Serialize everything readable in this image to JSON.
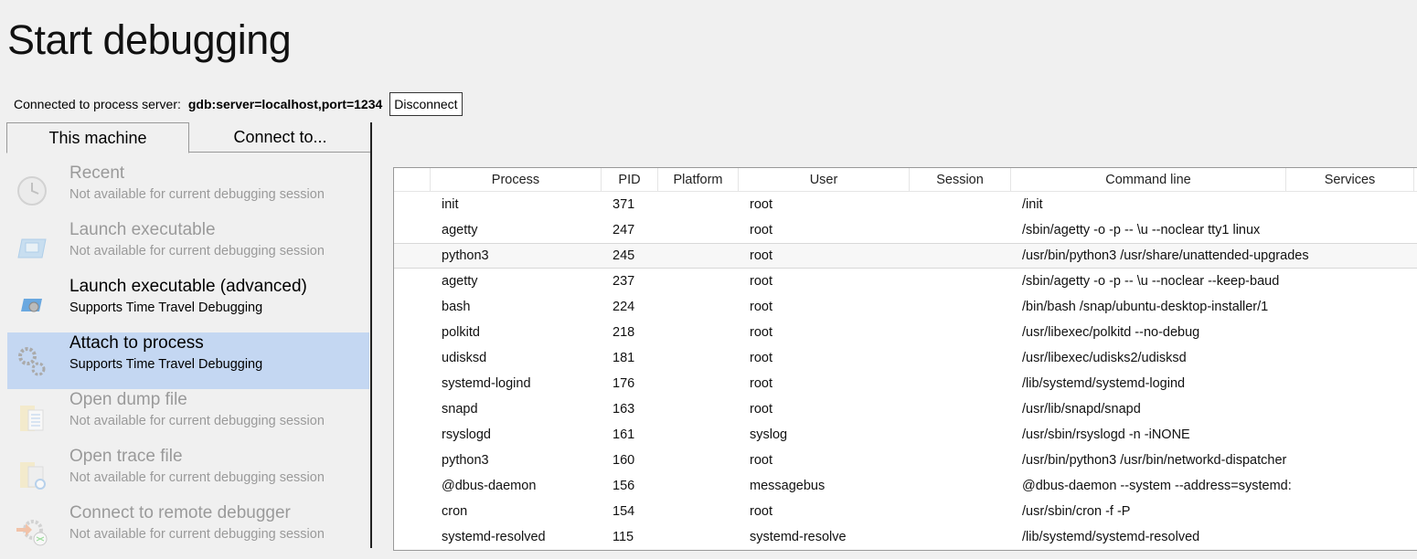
{
  "title": "Start debugging",
  "connection": {
    "label": "Connected to process server:",
    "server": "gdb:server=localhost,port=1234",
    "disconnect_label": "Disconnect"
  },
  "tabs": [
    {
      "label": "This machine",
      "active": true
    },
    {
      "label": "Connect to..."
    }
  ],
  "items": [
    {
      "title": "Recent",
      "subtitle": "Not available for current debugging session",
      "icon": "clock-icon",
      "disabled": true
    },
    {
      "title": "Launch executable",
      "subtitle": "Not available for current debugging session",
      "icon": "window-icon",
      "disabled": true
    },
    {
      "title": "Launch executable (advanced)",
      "subtitle": "Supports Time Travel Debugging",
      "icon": "window-gear-icon",
      "disabled": false
    },
    {
      "title": "Attach to process",
      "subtitle": "Supports Time Travel Debugging",
      "icon": "gears-icon",
      "disabled": false,
      "selected": true
    },
    {
      "title": "Open dump file",
      "subtitle": "Not available for current debugging session",
      "icon": "dump-file-icon",
      "disabled": true
    },
    {
      "title": "Open trace file",
      "subtitle": "Not available for current debugging session",
      "icon": "trace-file-icon",
      "disabled": true
    },
    {
      "title": "Connect to remote debugger",
      "subtitle": "Not available for current debugging session",
      "icon": "remote-connect-icon",
      "disabled": true
    }
  ],
  "table": {
    "columns": [
      "",
      "Process",
      "PID",
      "Platform",
      "User",
      "Session",
      "Command line",
      "Services"
    ],
    "rows": [
      [
        "init",
        "371",
        "",
        "root",
        "",
        "/init",
        ""
      ],
      [
        "agetty",
        "247",
        "",
        "root",
        "",
        "/sbin/agetty -o -p -- \\u --noclear tty1 linux",
        ""
      ],
      [
        "python3",
        "245",
        "",
        "root",
        "",
        "/usr/bin/python3 /usr/share/unattended-upgrades",
        ""
      ],
      [
        "agetty",
        "237",
        "",
        "root",
        "",
        "/sbin/agetty -o -p -- \\u --noclear --keep-baud",
        ""
      ],
      [
        "bash",
        "224",
        "",
        "root",
        "",
        "/bin/bash /snap/ubuntu-desktop-installer/1",
        ""
      ],
      [
        "polkitd",
        "218",
        "",
        "root",
        "",
        "/usr/libexec/polkitd --no-debug",
        ""
      ],
      [
        "udisksd",
        "181",
        "",
        "root",
        "",
        "/usr/libexec/udisks2/udisksd",
        ""
      ],
      [
        "systemd-logind",
        "176",
        "",
        "root",
        "",
        "/lib/systemd/systemd-logind",
        ""
      ],
      [
        "snapd",
        "163",
        "",
        "root",
        "",
        "/usr/lib/snapd/snapd",
        ""
      ],
      [
        "rsyslogd",
        "161",
        "",
        "syslog",
        "",
        "/usr/sbin/rsyslogd -n -iNONE",
        ""
      ],
      [
        "python3",
        "160",
        "",
        "root",
        "",
        "/usr/bin/python3 /usr/bin/networkd-dispatcher",
        ""
      ],
      [
        "@dbus-daemon",
        "156",
        "",
        "messagebus",
        "",
        "@dbus-daemon --system --address=systemd:",
        ""
      ],
      [
        "cron",
        "154",
        "",
        "root",
        "",
        "/usr/sbin/cron -f -P",
        ""
      ],
      [
        "systemd-resolved",
        "115",
        "",
        "systemd-resolve",
        "",
        "/lib/systemd/systemd-resolved",
        ""
      ]
    ],
    "highlighted_row": 2
  },
  "colors": {
    "selected": "#c4d7f2",
    "disabled_text": "#9a9a9a"
  }
}
